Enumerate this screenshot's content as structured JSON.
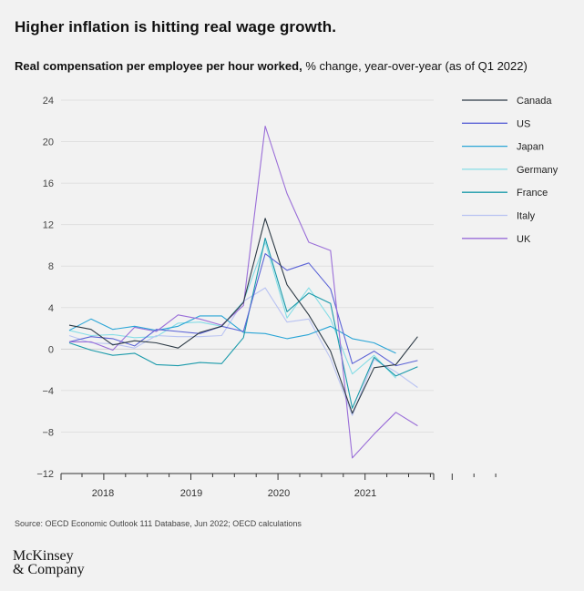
{
  "title": "Higher inflation is hitting real wage growth.",
  "subtitle_bold": "Real compensation per employee per hour worked,",
  "subtitle_rest": " % change, year-over-year (as of Q1 2022)",
  "source": "Source: OECD Economic Outlook 111 Database, Jun 2022; OECD calculations",
  "logo_line1": "McKinsey",
  "logo_line2": "& Company",
  "chart_data": {
    "type": "line",
    "title": "Real compensation per employee per hour worked, % change, year-over-year (as of Q1 2022)",
    "xlabel": "",
    "ylabel": "",
    "ylim": [
      -12,
      24
    ],
    "yticks": [
      "24",
      "20",
      "16",
      "12",
      "8",
      "4",
      "0",
      "−4",
      "−8",
      "−12"
    ],
    "ytick_values": [
      24,
      20,
      16,
      12,
      8,
      4,
      0,
      -4,
      -8,
      -12
    ],
    "year_labels": [
      "2018",
      "2019",
      "2020",
      "2021"
    ],
    "x": [
      "2017Q2",
      "2017Q3",
      "2017Q4",
      "2018Q1",
      "2018Q2",
      "2018Q3",
      "2018Q4",
      "2019Q1",
      "2019Q2",
      "2019Q3",
      "2019Q4",
      "2020Q1",
      "2020Q2",
      "2020Q3",
      "2020Q4",
      "2021Q1",
      "2021Q2",
      "2021Q3",
      "2021Q4",
      "2022Q1"
    ],
    "series": [
      {
        "name": "Canada",
        "color": "#2d3a45",
        "values": [
          2.3,
          1.9,
          0.4,
          0.8,
          0.6,
          0.1,
          1.6,
          2.2,
          4.5,
          12.6,
          6.2,
          3.3,
          -0.2,
          -6.2,
          -1.8,
          -1.5,
          1.2,
          null,
          null,
          null
        ]
      },
      {
        "name": "US",
        "color": "#5b63d6",
        "values": [
          0.7,
          1.2,
          1.0,
          0.3,
          1.9,
          1.7,
          1.5,
          2.2,
          1.7,
          9.2,
          7.6,
          8.3,
          5.8,
          -1.4,
          -0.2,
          -1.6,
          -1.1,
          null,
          null,
          null
        ]
      },
      {
        "name": "Japan",
        "color": "#2aa5d6",
        "values": [
          1.8,
          2.9,
          1.9,
          2.2,
          1.8,
          2.2,
          3.2,
          3.2,
          1.6,
          1.5,
          1.0,
          1.4,
          2.2,
          1.0,
          0.6,
          -0.4,
          null,
          null,
          null,
          null
        ]
      },
      {
        "name": "Germany",
        "color": "#86dde6",
        "values": [
          1.8,
          1.3,
          1.4,
          1.1,
          1.2,
          2.5,
          2.6,
          2.2,
          4.6,
          10.3,
          3.0,
          5.9,
          2.9,
          -2.4,
          -0.6,
          -2.8,
          null,
          null,
          null,
          null
        ]
      },
      {
        "name": "France",
        "color": "#1a9aaa",
        "values": [
          0.6,
          -0.1,
          -0.6,
          -0.4,
          -1.5,
          -1.6,
          -1.3,
          -1.4,
          1.1,
          10.7,
          3.6,
          5.4,
          4.4,
          -5.7,
          -0.8,
          -2.6,
          -1.7,
          null,
          null,
          null
        ]
      },
      {
        "name": "Italy",
        "color": "#b9c3f2",
        "values": [
          1.3,
          0.6,
          0.5,
          0.1,
          1.3,
          1.2,
          1.2,
          1.3,
          4.6,
          5.9,
          2.6,
          2.9,
          -0.9,
          -6.4,
          -1.0,
          -2.2,
          -3.7,
          null,
          null,
          null
        ]
      },
      {
        "name": "UK",
        "color": "#9a6ed8",
        "values": [
          0.7,
          0.7,
          -0.1,
          2.1,
          1.7,
          3.3,
          2.9,
          2.3,
          4.2,
          21.5,
          15.0,
          10.3,
          9.5,
          -10.5,
          -8.2,
          -6.1,
          -7.4,
          null,
          null,
          null
        ]
      }
    ]
  }
}
